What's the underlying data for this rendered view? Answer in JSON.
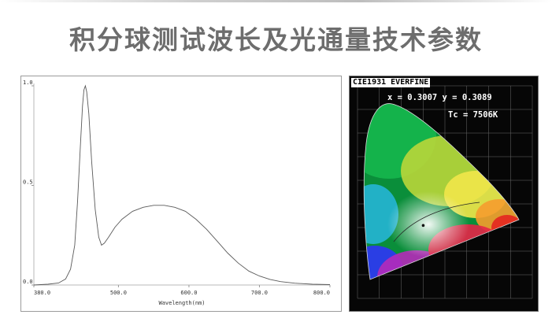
{
  "header": {
    "title": "积分球测试波长及光通量技术参数"
  },
  "chart_data": [
    {
      "type": "line",
      "xlabel": "Wavelength(nm)",
      "ylabel": "",
      "xlim": [
        380,
        800
      ],
      "ylim": [
        0,
        1.0
      ],
      "x_ticks": [
        "380.0",
        "500.0",
        "600.0",
        "700.0",
        "800.0"
      ],
      "y_ticks": [
        "0.0",
        "0.5",
        "1.0"
      ],
      "series": [
        {
          "values": [
            [
              380,
              0.0
            ],
            [
              400,
              0.004
            ],
            [
              415,
              0.01
            ],
            [
              425,
              0.03
            ],
            [
              432,
              0.08
            ],
            [
              438,
              0.2
            ],
            [
              442,
              0.42
            ],
            [
              446,
              0.7
            ],
            [
              449,
              0.9
            ],
            [
              451,
              0.98
            ],
            [
              453,
              1.0
            ],
            [
              455,
              0.97
            ],
            [
              458,
              0.86
            ],
            [
              462,
              0.62
            ],
            [
              467,
              0.38
            ],
            [
              472,
              0.24
            ],
            [
              476,
              0.2
            ],
            [
              480,
              0.21
            ],
            [
              486,
              0.24
            ],
            [
              495,
              0.29
            ],
            [
              505,
              0.33
            ],
            [
              520,
              0.37
            ],
            [
              535,
              0.39
            ],
            [
              550,
              0.4
            ],
            [
              565,
              0.4
            ],
            [
              580,
              0.39
            ],
            [
              595,
              0.37
            ],
            [
              610,
              0.33
            ],
            [
              625,
              0.28
            ],
            [
              640,
              0.22
            ],
            [
              655,
              0.16
            ],
            [
              670,
              0.11
            ],
            [
              685,
              0.07
            ],
            [
              700,
              0.045
            ],
            [
              715,
              0.028
            ],
            [
              730,
              0.017
            ],
            [
              750,
              0.009
            ],
            [
              775,
              0.004
            ],
            [
              800,
              0.002
            ]
          ]
        }
      ]
    },
    {
      "type": "scatter",
      "title": "CIE1931 EVERFINE",
      "xlim": [
        0,
        0.8
      ],
      "ylim": [
        0,
        0.9
      ],
      "series": [
        {
          "values": [
            [
              0.3007,
              0.3089
            ]
          ]
        }
      ]
    }
  ],
  "cie": {
    "title": "CIE1931 EVERFINE",
    "coordinates": "x = 0.3007 y = 0.3089",
    "cct": "Tc = 7506K"
  },
  "colors": {
    "curve": "#5a5a5a",
    "frame": "#9b9b9b",
    "heading": "#6d6d6d",
    "cie_background": "#060606"
  }
}
